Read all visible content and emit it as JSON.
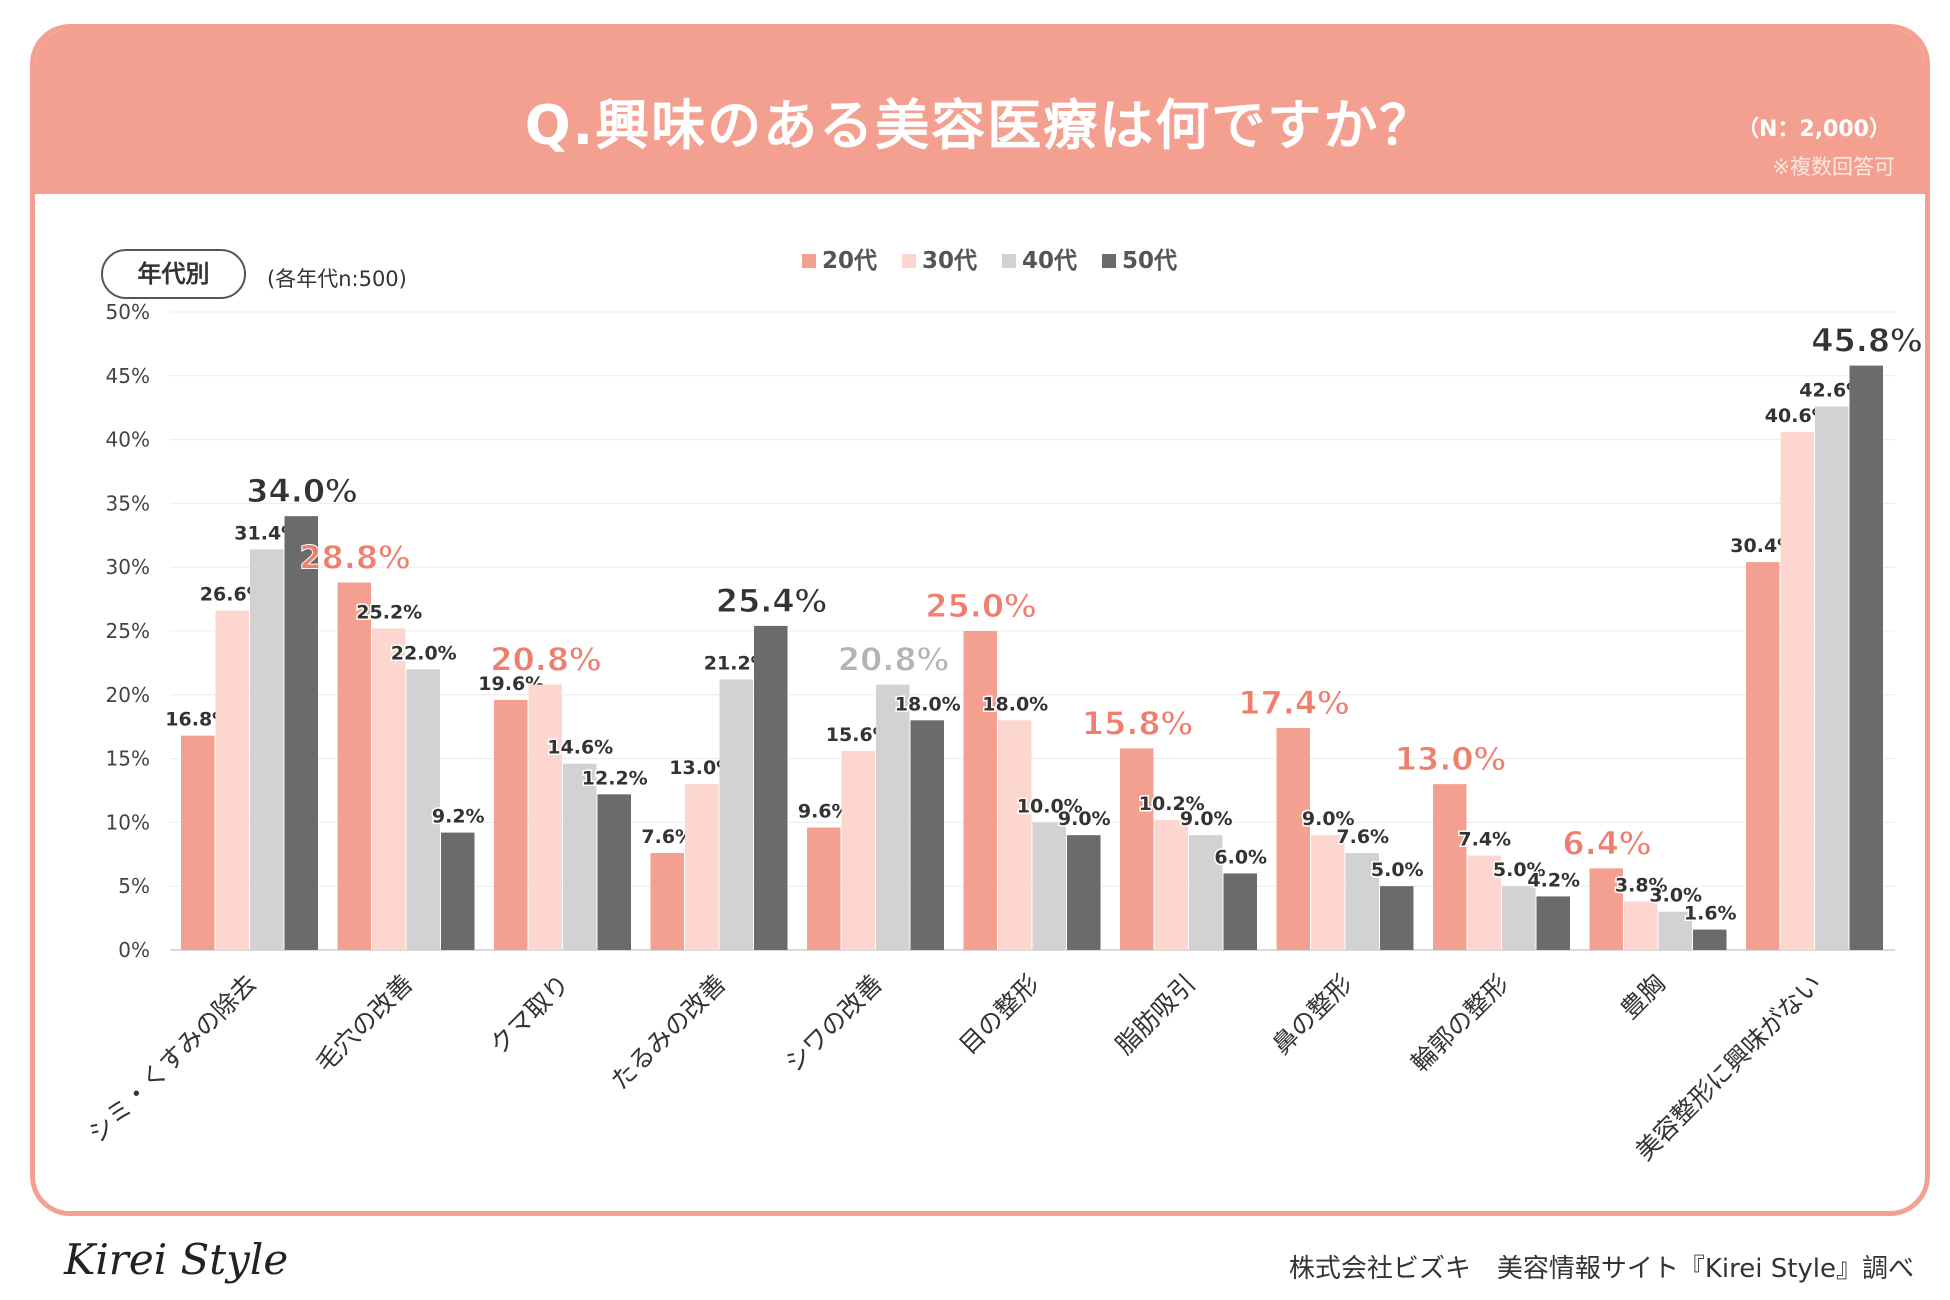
{
  "header": {
    "title": "Q.興味のある美容医療は何ですか？",
    "sample_size": "（N：2,000）",
    "note": "※複数回答可"
  },
  "filter": {
    "tag": "年代別",
    "note": "(各年代n:500)"
  },
  "footer": {
    "brand": "Kirei Style",
    "credit": "株式会社ビズキ　美容情報サイト『Kirei Style』調べ"
  },
  "colors": {
    "header": "#f4a091",
    "20s": "#f4a091",
    "30s": "#fcd6cf",
    "40s": "#d2d2d2",
    "50s": "#6b6b6b",
    "highlight_red": "#ef7f6c",
    "highlight_gray": "#b4b4b4",
    "highlight_dark": "#333333"
  },
  "chart_data": {
    "type": "bar",
    "title": "Q.興味のある美容医療は何ですか？",
    "xlabel": "",
    "ylabel": "",
    "ylim": [
      0,
      50
    ],
    "yticks": [
      0,
      5,
      10,
      15,
      20,
      25,
      30,
      35,
      40,
      45,
      50
    ],
    "ytick_labels": [
      "0%",
      "5%",
      "10%",
      "15%",
      "20%",
      "25%",
      "30%",
      "35%",
      "40%",
      "45%",
      "50%"
    ],
    "grid": true,
    "legend_position": "top-center",
    "categories": [
      "シミ・くすみの除去",
      "毛穴の改善",
      "クマ取り",
      "たるみの改善",
      "シワの改善",
      "目の整形",
      "脂肪吸引",
      "鼻の整形",
      "輪郭の整形",
      "豊胸",
      "美容整形に興味がない"
    ],
    "series": [
      {
        "name": "20代",
        "values": [
          16.8,
          28.8,
          19.6,
          7.6,
          9.6,
          25.0,
          15.8,
          17.4,
          13.0,
          6.4,
          30.4
        ]
      },
      {
        "name": "30代",
        "values": [
          26.6,
          25.2,
          20.8,
          13.0,
          15.6,
          18.0,
          10.2,
          9.0,
          7.4,
          3.8,
          40.6
        ]
      },
      {
        "name": "40代",
        "values": [
          31.4,
          22.0,
          14.6,
          21.2,
          20.8,
          10.0,
          9.0,
          7.6,
          5.0,
          3.0,
          42.6
        ]
      },
      {
        "name": "50代",
        "values": [
          34.0,
          9.2,
          12.2,
          25.4,
          18.0,
          9.0,
          6.0,
          5.0,
          4.2,
          1.6,
          45.8
        ]
      }
    ],
    "highlights": [
      {
        "category": 0,
        "series": 3,
        "color": "highlight_dark"
      },
      {
        "category": 1,
        "series": 0,
        "color": "highlight_red"
      },
      {
        "category": 2,
        "series": 1,
        "color": "highlight_red"
      },
      {
        "category": 3,
        "series": 3,
        "color": "highlight_dark"
      },
      {
        "category": 4,
        "series": 2,
        "color": "highlight_gray"
      },
      {
        "category": 5,
        "series": 0,
        "color": "highlight_red"
      },
      {
        "category": 6,
        "series": 0,
        "color": "highlight_red"
      },
      {
        "category": 7,
        "series": 0,
        "color": "highlight_red"
      },
      {
        "category": 8,
        "series": 0,
        "color": "highlight_red"
      },
      {
        "category": 9,
        "series": 0,
        "color": "highlight_red"
      },
      {
        "category": 10,
        "series": 3,
        "color": "highlight_dark"
      }
    ]
  }
}
